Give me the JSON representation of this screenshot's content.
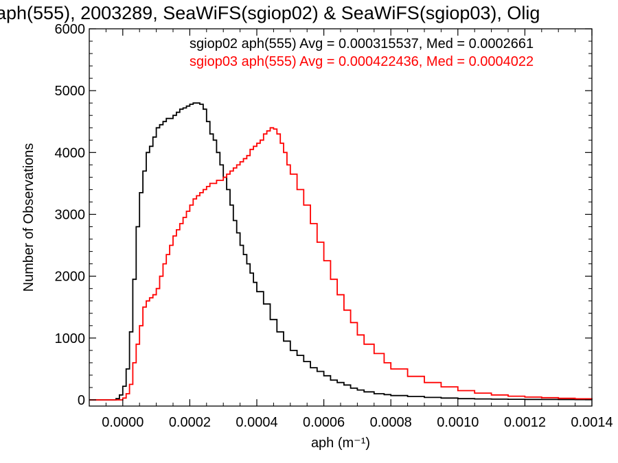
{
  "chart_data": {
    "type": "line",
    "title": "aph(555), 2003289, SeaWiFS(sgiop02) & SeaWiFS(sgiop03), Olig",
    "xlabel": "aph (m⁻¹)",
    "ylabel": "Number of Observations",
    "xlim": [
      -0.0001,
      0.0014
    ],
    "ylim": [
      -100,
      6000
    ],
    "x_ticks": [
      0.0,
      0.0002,
      0.0004,
      0.0006,
      0.0008,
      0.001,
      0.0012,
      0.0014
    ],
    "x_tick_labels": [
      "0.0000",
      "0.0002",
      "0.0004",
      "0.0006",
      "0.0008",
      "0.0010",
      "0.0012",
      "0.0014"
    ],
    "y_ticks": [
      0,
      1000,
      2000,
      3000,
      4000,
      5000,
      6000
    ],
    "y_tick_labels": [
      "0",
      "1000",
      "2000",
      "3000",
      "4000",
      "5000",
      "6000"
    ],
    "step_style": "histogram",
    "legend_location": "top-right",
    "series": [
      {
        "label": "sgiop02 aph(555) Avg = 0.000315537, Med = 0.0002661",
        "color": "#000000",
        "x": [
          -0.0001,
          -5e-05,
          -2e-05,
          -1e-05,
          0.0,
          1e-05,
          2e-05,
          3e-05,
          4e-05,
          5e-05,
          6e-05,
          7e-05,
          8e-05,
          9e-05,
          0.0001,
          0.00011,
          0.00012,
          0.00013,
          0.00014,
          0.00015,
          0.00016,
          0.00017,
          0.00018,
          0.00019,
          0.0002,
          0.00021,
          0.00022,
          0.00023,
          0.00024,
          0.00025,
          0.00026,
          0.00027,
          0.00028,
          0.00029,
          0.0003,
          0.00031,
          0.00032,
          0.00033,
          0.00034,
          0.00035,
          0.00036,
          0.00037,
          0.00038,
          0.00039,
          0.0004,
          0.00042,
          0.00044,
          0.00046,
          0.00048,
          0.0005,
          0.00052,
          0.00054,
          0.00056,
          0.00058,
          0.0006,
          0.00062,
          0.00064,
          0.00066,
          0.00068,
          0.0007,
          0.00072,
          0.00075,
          0.00078,
          0.0008,
          0.00085,
          0.0009,
          0.00095,
          0.001,
          0.00105,
          0.0011,
          0.00115,
          0.0012,
          0.00125,
          0.0013,
          0.00135,
          0.0014
        ],
        "values": [
          0,
          0,
          20,
          80,
          220,
          500,
          1100,
          1950,
          2800,
          3350,
          3700,
          4000,
          4100,
          4250,
          4400,
          4450,
          4500,
          4550,
          4550,
          4600,
          4650,
          4700,
          4720,
          4750,
          4780,
          4800,
          4800,
          4780,
          4700,
          4500,
          4300,
          4200,
          4000,
          3800,
          3600,
          3400,
          3150,
          2900,
          2700,
          2500,
          2350,
          2200,
          2050,
          1900,
          1750,
          1550,
          1300,
          1100,
          950,
          800,
          720,
          620,
          520,
          460,
          390,
          320,
          280,
          240,
          190,
          160,
          130,
          100,
          85,
          70,
          55,
          40,
          30,
          20,
          15,
          12,
          10,
          8,
          6,
          5,
          4,
          3
        ]
      },
      {
        "label": "sgiop03 aph(555) Avg = 0.000422436, Med = 0.0004022",
        "color": "#ff0000",
        "x": [
          -0.0001,
          -2e-05,
          0.0,
          1e-05,
          2e-05,
          3e-05,
          4e-05,
          5e-05,
          6e-05,
          7e-05,
          8e-05,
          9e-05,
          0.0001,
          0.00011,
          0.00012,
          0.00013,
          0.00014,
          0.00015,
          0.00016,
          0.00017,
          0.00018,
          0.00019,
          0.0002,
          0.00021,
          0.00022,
          0.00023,
          0.00024,
          0.00025,
          0.00026,
          0.00027,
          0.00028,
          0.00029,
          0.0003,
          0.00031,
          0.00032,
          0.00033,
          0.00034,
          0.00035,
          0.00036,
          0.00037,
          0.00038,
          0.00039,
          0.0004,
          0.00041,
          0.00042,
          0.00043,
          0.00044,
          0.00045,
          0.00046,
          0.00047,
          0.00048,
          0.00049,
          0.0005,
          0.00052,
          0.00054,
          0.00056,
          0.00058,
          0.0006,
          0.00062,
          0.00064,
          0.00066,
          0.00068,
          0.0007,
          0.00072,
          0.00075,
          0.00078,
          0.0008,
          0.00085,
          0.0009,
          0.00095,
          0.001,
          0.00105,
          0.0011,
          0.00115,
          0.0012,
          0.00125,
          0.0013,
          0.00135,
          0.0014
        ],
        "values": [
          0,
          0,
          30,
          100,
          250,
          600,
          900,
          1200,
          1500,
          1600,
          1650,
          1700,
          1800,
          2000,
          2200,
          2350,
          2500,
          2650,
          2750,
          2850,
          2950,
          3050,
          3150,
          3250,
          3300,
          3350,
          3400,
          3450,
          3500,
          3500,
          3550,
          3550,
          3600,
          3650,
          3700,
          3750,
          3800,
          3850,
          3900,
          3950,
          4050,
          4100,
          4150,
          4200,
          4300,
          4350,
          4400,
          4380,
          4300,
          4150,
          4000,
          3800,
          3650,
          3400,
          3150,
          2850,
          2550,
          2250,
          1950,
          1700,
          1450,
          1250,
          1050,
          900,
          750,
          600,
          500,
          380,
          280,
          210,
          150,
          110,
          80,
          60,
          45,
          35,
          25,
          18,
          12
        ]
      }
    ]
  }
}
